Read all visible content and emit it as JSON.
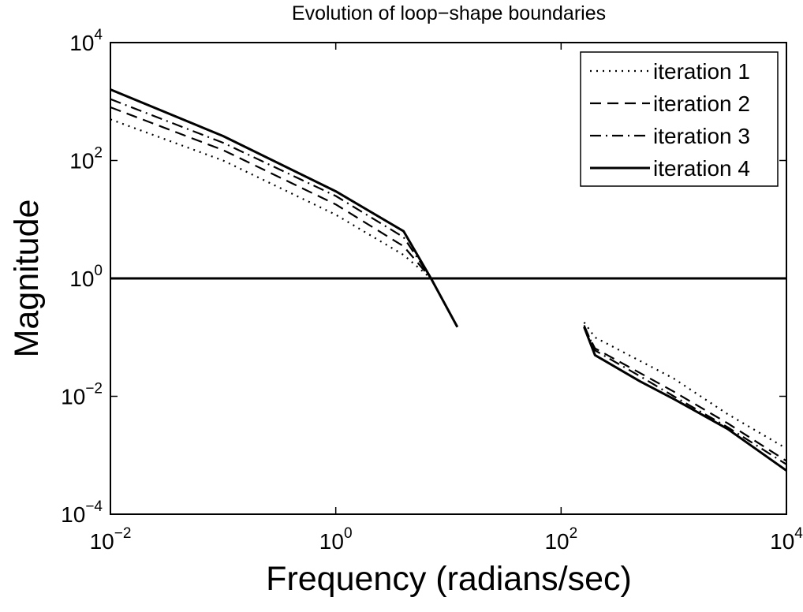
{
  "chart_data": {
    "type": "line",
    "title": "Evolution of loop−shape boundaries",
    "xlabel": "Frequency (radians/sec)",
    "ylabel": "Magnitude",
    "x_scale": "log",
    "y_scale": "log",
    "xlim": [
      0.01,
      10000
    ],
    "ylim": [
      0.0001,
      10000
    ],
    "x_ticks": [
      {
        "value": 0.01,
        "base": "10",
        "exp": "−2"
      },
      {
        "value": 1,
        "base": "10",
        "exp": "0"
      },
      {
        "value": 100,
        "base": "10",
        "exp": "2"
      },
      {
        "value": 10000,
        "base": "10",
        "exp": "4"
      }
    ],
    "y_ticks": [
      {
        "value": 0.0001,
        "base": "10",
        "exp": "−4"
      },
      {
        "value": 0.01,
        "base": "10",
        "exp": "−2"
      },
      {
        "value": 1,
        "base": "10",
        "exp": "0"
      },
      {
        "value": 100,
        "base": "10",
        "exp": "2"
      },
      {
        "value": 10000,
        "base": "10",
        "exp": "4"
      }
    ],
    "grid": false,
    "legend_position": "top-right",
    "reference_line": {
      "y": 1,
      "style": "solid"
    },
    "series": [
      {
        "name": "iteration 1",
        "style": "dotted",
        "segments": [
          [
            [
              0.01,
              500
            ],
            [
              0.1,
              100
            ],
            [
              1,
              12
            ],
            [
              4,
              2.5
            ],
            [
              7,
              1
            ],
            [
              12,
              0.15
            ]
          ],
          [
            [
              160,
              0.18
            ],
            [
              200,
              0.1
            ],
            [
              500,
              0.04
            ],
            [
              1000,
              0.02
            ],
            [
              3000,
              0.005
            ],
            [
              10000,
              0.0013
            ]
          ]
        ]
      },
      {
        "name": "iteration 2",
        "style": "dashed",
        "segments": [
          [
            [
              0.01,
              800
            ],
            [
              0.1,
              150
            ],
            [
              1,
              18
            ],
            [
              4,
              3.5
            ],
            [
              7,
              1
            ],
            [
              12,
              0.15
            ]
          ],
          [
            [
              160,
              0.15
            ],
            [
              200,
              0.065
            ],
            [
              500,
              0.025
            ],
            [
              1000,
              0.012
            ],
            [
              3000,
              0.0035
            ],
            [
              10000,
              0.0008
            ]
          ]
        ]
      },
      {
        "name": "iteration 3",
        "style": "dashdot",
        "segments": [
          [
            [
              0.01,
              1100
            ],
            [
              0.1,
              200
            ],
            [
              1,
              25
            ],
            [
              4,
              5
            ],
            [
              7,
              1
            ],
            [
              12,
              0.15
            ]
          ],
          [
            [
              160,
              0.16
            ],
            [
              200,
              0.06
            ],
            [
              500,
              0.022
            ],
            [
              1000,
              0.01
            ],
            [
              3000,
              0.003
            ],
            [
              10000,
              0.0007
            ]
          ]
        ]
      },
      {
        "name": "iteration 4",
        "style": "solid",
        "segments": [
          [
            [
              0.01,
              1600
            ],
            [
              0.1,
              260
            ],
            [
              1,
              30
            ],
            [
              4,
              6.3
            ],
            [
              7,
              1
            ],
            [
              12,
              0.15
            ]
          ],
          [
            [
              160,
              0.15
            ],
            [
              200,
              0.05
            ],
            [
              500,
              0.018
            ],
            [
              1000,
              0.009
            ],
            [
              3000,
              0.0028
            ],
            [
              10000,
              0.00055
            ]
          ]
        ]
      }
    ]
  }
}
